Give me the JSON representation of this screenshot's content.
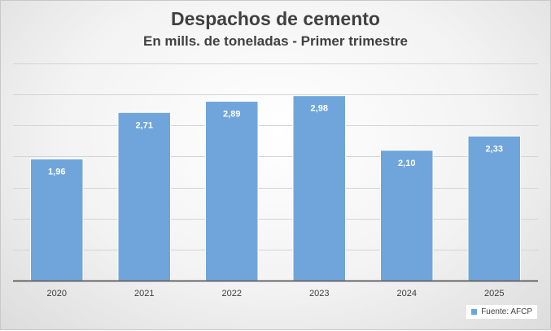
{
  "chart_data": {
    "type": "bar",
    "title": "Despachos de cemento",
    "subtitle": "En mills. de toneladas - Primer trimestre",
    "categories": [
      "2020",
      "2021",
      "2022",
      "2023",
      "2024",
      "2025"
    ],
    "series": [
      {
        "name": "Fuente: AFCP",
        "values": [
          1.96,
          2.71,
          2.89,
          2.98,
          2.1,
          2.33
        ],
        "labels": [
          "1,96",
          "2,71",
          "2,89",
          "2,98",
          "2,10",
          "2,33"
        ]
      }
    ],
    "ylim": [
      0,
      3.5
    ],
    "grid": true,
    "legend": "bottom-right",
    "colors": {
      "bar": "#6fa5da",
      "grid": "#d4d4d4",
      "axis": "#404040"
    }
  }
}
